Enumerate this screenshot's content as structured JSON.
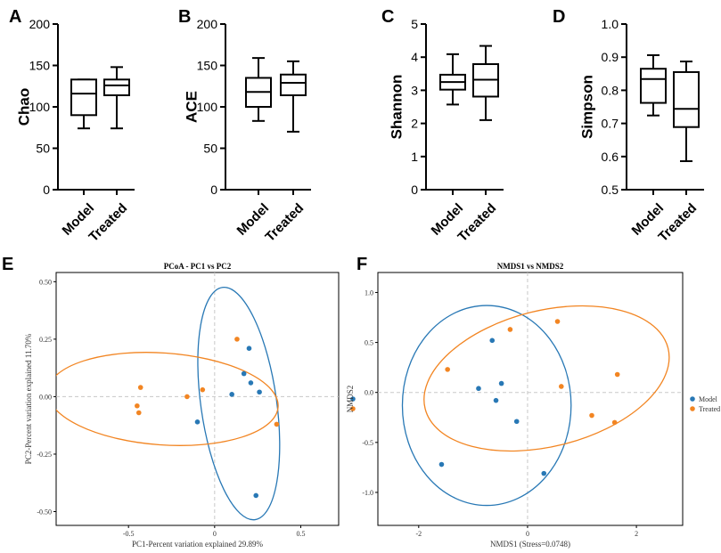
{
  "figure": {
    "letters": [
      "A",
      "B",
      "C",
      "D",
      "E",
      "F"
    ]
  },
  "chart_data": [
    {
      "type": "box",
      "panel": "A",
      "ylabel": "Chao",
      "categories": [
        "Model",
        "Treated"
      ],
      "ylim": [
        0,
        200
      ],
      "yticks": [
        0,
        50,
        100,
        150,
        200
      ],
      "boxes": [
        {
          "min": 74,
          "q1": 90,
          "median": 116,
          "q3": 133,
          "max": 133
        },
        {
          "min": 74,
          "q1": 114,
          "median": 126,
          "q3": 133,
          "max": 148
        }
      ]
    },
    {
      "type": "box",
      "panel": "B",
      "ylabel": "ACE",
      "categories": [
        "Model",
        "Treated"
      ],
      "ylim": [
        0,
        200
      ],
      "yticks": [
        0,
        50,
        100,
        150,
        200
      ],
      "boxes": [
        {
          "min": 83,
          "q1": 100,
          "median": 118,
          "q3": 135,
          "max": 159
        },
        {
          "min": 70,
          "q1": 114,
          "median": 129,
          "q3": 139,
          "max": 155
        }
      ]
    },
    {
      "type": "box",
      "panel": "C",
      "ylabel": "Shannon",
      "categories": [
        "Model",
        "Treated"
      ],
      "ylim": [
        0,
        5
      ],
      "yticks": [
        0,
        1,
        2,
        3,
        4,
        5
      ],
      "boxes": [
        {
          "min": 2.57,
          "q1": 3.02,
          "median": 3.25,
          "q3": 3.47,
          "max": 4.09
        },
        {
          "min": 2.1,
          "q1": 2.81,
          "median": 3.32,
          "q3": 3.79,
          "max": 4.34
        }
      ]
    },
    {
      "type": "box",
      "panel": "D",
      "ylabel": "Simpson",
      "categories": [
        "Model",
        "Treated"
      ],
      "ylim": [
        0.5,
        1.0
      ],
      "yticks": [
        "0.5",
        "0.6",
        "0.7",
        "0.8",
        "0.9",
        "1.0"
      ],
      "boxes": [
        {
          "min": 0.724,
          "q1": 0.762,
          "median": 0.834,
          "q3": 0.865,
          "max": 0.906
        },
        {
          "min": 0.586,
          "q1": 0.689,
          "median": 0.744,
          "q3": 0.855,
          "max": 0.887
        }
      ]
    },
    {
      "type": "scatter",
      "panel": "E",
      "title": "PCoA - PC1 vs PC2",
      "xlabel": "PC1-Percent variation explained 29.89%",
      "ylabel": "PC2-Percent variation explained 11.70%",
      "xlim": [
        -0.92,
        0.72
      ],
      "ylim": [
        -0.56,
        0.54
      ],
      "xticks": [
        "-0.5",
        "0",
        "0.5"
      ],
      "xtick_values": [
        -0.5,
        0,
        0.5
      ],
      "yticks": [
        "0.50",
        "0.25",
        "0.00",
        "-0.25",
        "-0.50"
      ],
      "ytick_values": [
        0.5,
        0.25,
        0,
        -0.25,
        -0.5
      ],
      "series": [
        {
          "name": "Model",
          "color": "#2878b5",
          "points": [
            [
              0.2,
              0.21
            ],
            [
              0.17,
              0.1
            ],
            [
              0.21,
              0.06
            ],
            [
              0.26,
              0.02
            ],
            [
              0.1,
              0.01
            ],
            [
              -0.1,
              -0.11
            ],
            [
              0.24,
              -0.43
            ]
          ],
          "ellipse": {
            "cx": 0.14,
            "cy": -0.03,
            "rx": 0.22,
            "ry": 0.51,
            "rotation": -8
          }
        },
        {
          "name": "Treated",
          "color": "#f28522",
          "points": [
            [
              0.13,
              0.25
            ],
            [
              -0.43,
              0.04
            ],
            [
              -0.45,
              -0.04
            ],
            [
              -0.44,
              -0.07
            ],
            [
              -0.16,
              0.0
            ],
            [
              -0.07,
              0.03
            ],
            [
              0.36,
              -0.12
            ]
          ],
          "ellipse": {
            "cx": -0.3,
            "cy": -0.01,
            "rx": 0.67,
            "ry": 0.2,
            "rotation": 4
          }
        }
      ],
      "legend": "right"
    },
    {
      "type": "scatter",
      "panel": "F",
      "title": "NMDS1 vs NMDS2",
      "xlabel": "NMDS1 (Stress=0.0748)",
      "ylabel": "NMDS2",
      "xlim": [
        -2.75,
        2.85
      ],
      "ylim": [
        -1.33,
        1.2
      ],
      "xticks": [
        "-2",
        "0",
        "2"
      ],
      "xtick_values": [
        -2,
        0,
        2
      ],
      "yticks": [
        "1.0",
        "0.5",
        "0.0",
        "-0.5",
        "-1.0"
      ],
      "ytick_values": [
        1.0,
        0.5,
        0.0,
        -0.5,
        -1.0
      ],
      "series": [
        {
          "name": "Model",
          "color": "#2878b5",
          "points": [
            [
              -0.65,
              0.52
            ],
            [
              -0.9,
              0.04
            ],
            [
              -0.48,
              0.09
            ],
            [
              -0.58,
              -0.08
            ],
            [
              -0.2,
              -0.29
            ],
            [
              -1.58,
              -0.72
            ],
            [
              0.3,
              -0.81
            ]
          ],
          "ellipse": {
            "cx": -0.75,
            "cy": -0.13,
            "rx": 1.55,
            "ry": 1.0,
            "rotation": 0
          }
        },
        {
          "name": "Treated",
          "color": "#f28522",
          "points": [
            [
              0.55,
              0.71
            ],
            [
              -0.32,
              0.63
            ],
            [
              -1.47,
              0.23
            ],
            [
              0.62,
              0.06
            ],
            [
              1.65,
              0.18
            ],
            [
              1.18,
              -0.23
            ],
            [
              1.6,
              -0.3
            ]
          ],
          "ellipse": {
            "cx": 0.35,
            "cy": 0.14,
            "rx": 2.3,
            "ry": 0.68,
            "rotation": -14
          }
        }
      ],
      "legend": "right"
    }
  ]
}
